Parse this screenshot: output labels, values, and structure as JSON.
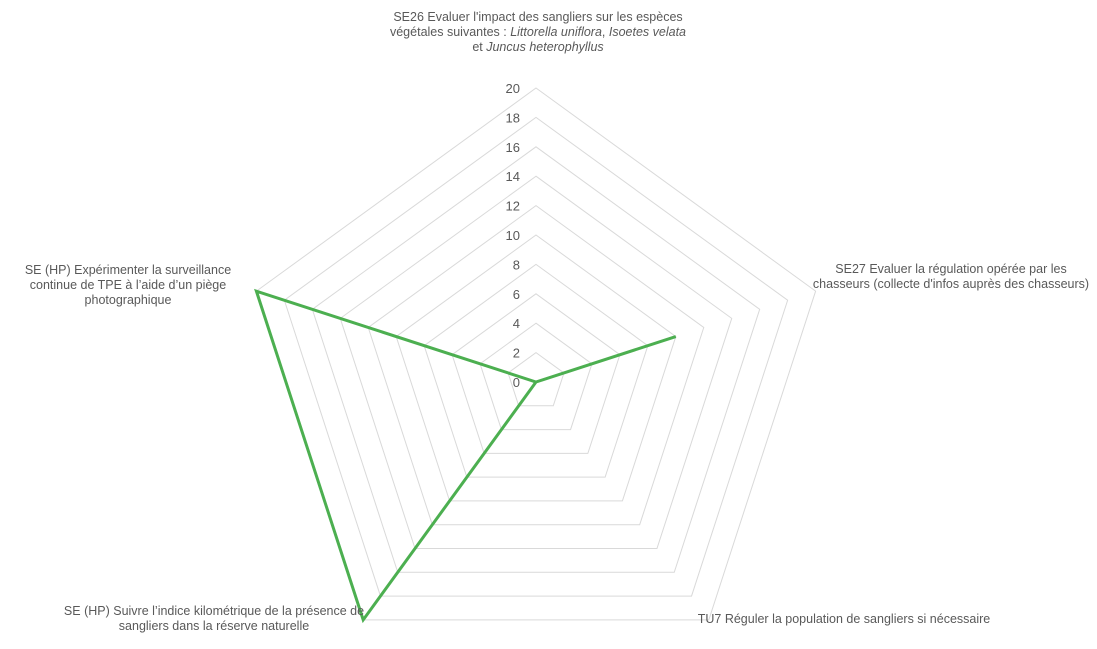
{
  "chart_data": {
    "type": "radar",
    "axes": [
      {
        "label_parts": [
          {
            "t": "SE26 Evaluer l'impact des sangliers sur les espèces végétales suivantes : ",
            "i": false
          },
          {
            "t": "Littorella uniflora",
            "i": true
          },
          {
            "t": ", ",
            "i": false
          },
          {
            "t": "Isoetes velata",
            "i": true
          },
          {
            "t": " et ",
            "i": false
          },
          {
            "t": "Juncus heterophyllus",
            "i": true
          }
        ]
      },
      {
        "label_parts": [
          {
            "t": "SE27 Evaluer la régulation opérée par les chasseurs (collecte d'infos auprès des chasseurs)",
            "i": false
          }
        ]
      },
      {
        "label_parts": [
          {
            "t": "TU7 Réguler la population de sangliers si nécessaire",
            "i": false
          }
        ]
      },
      {
        "label_parts": [
          {
            "t": "SE (HP) Suivre l’indice kilométrique de la présence de sangliers dans la réserve naturelle",
            "i": false
          }
        ]
      },
      {
        "label_parts": [
          {
            "t": "SE (HP) Expérimenter la surveillance continue de TPE à l’aide d’un piège photographique",
            "i": false
          }
        ]
      }
    ],
    "series": [
      {
        "values": [
          0,
          10,
          0,
          20,
          20
        ],
        "color": "#4CAF50"
      }
    ],
    "r_range": [
      0,
      20
    ],
    "ticks": [
      "0",
      "2",
      "4",
      "6",
      "8",
      "10",
      "12",
      "14",
      "16",
      "18",
      "20"
    ],
    "grid": true,
    "legend": "none",
    "grid_color": "#d9d9d9",
    "text_color": "#595959"
  }
}
